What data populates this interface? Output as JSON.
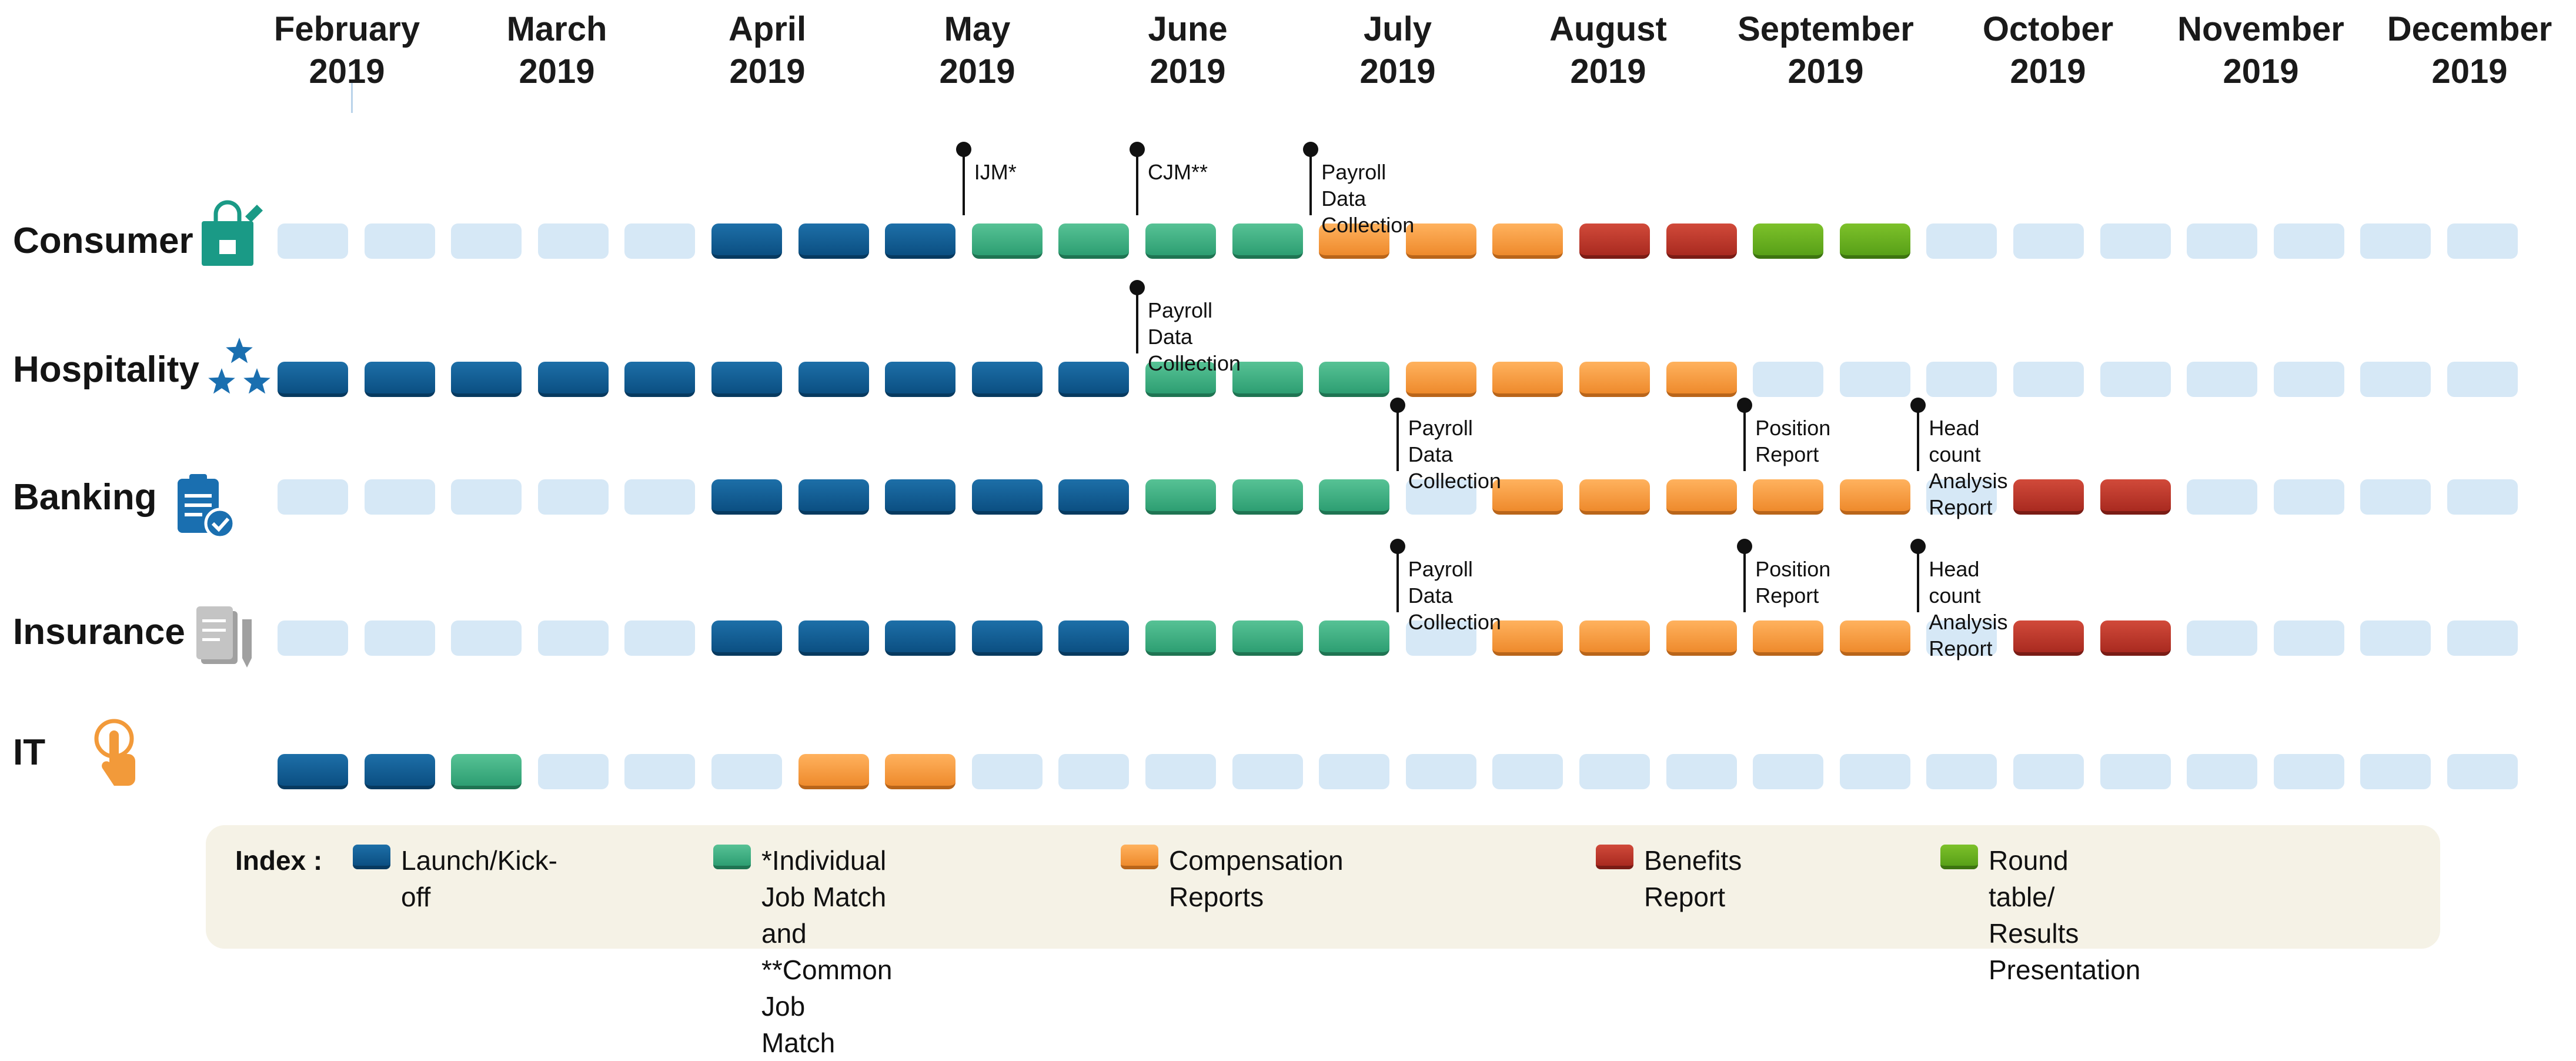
{
  "months": [
    "February\n2019",
    "March\n2019",
    "April\n2019",
    "May\n2019",
    "June\n2019",
    "July\n2019",
    "August\n2019",
    "September\n2019",
    "October\n2019",
    "November\n2019",
    "December\n2019"
  ],
  "rows": [
    {
      "label": "Consumer",
      "icon": "shopping-bag-icon",
      "blocks": [
        "empty",
        "empty",
        "empty",
        "empty",
        "empty",
        "launch",
        "launch",
        "launch",
        "match",
        "match",
        "match",
        "match",
        "comp",
        "comp",
        "comp",
        "benefit",
        "benefit",
        "round",
        "round",
        "empty",
        "empty",
        "empty",
        "empty",
        "empty",
        "empty",
        "empty"
      ]
    },
    {
      "label": "Hospitality",
      "icon": "stars-icon",
      "blocks": [
        "launch",
        "launch",
        "launch",
        "launch",
        "launch",
        "launch",
        "launch",
        "launch",
        "launch",
        "launch",
        "match",
        "match",
        "match",
        "comp",
        "comp",
        "comp",
        "comp",
        "empty",
        "empty",
        "empty",
        "empty",
        "empty",
        "empty",
        "empty",
        "empty",
        "empty"
      ]
    },
    {
      "label": "Banking",
      "icon": "clipboard-check-icon",
      "blocks": [
        "empty",
        "empty",
        "empty",
        "empty",
        "empty",
        "launch",
        "launch",
        "launch",
        "launch",
        "launch",
        "match",
        "match",
        "match",
        "empty",
        "comp",
        "comp",
        "comp",
        "comp",
        "comp",
        "empty",
        "benefit",
        "benefit",
        "empty",
        "empty",
        "empty",
        "empty"
      ]
    },
    {
      "label": "Insurance",
      "icon": "document-pen-icon",
      "blocks": [
        "empty",
        "empty",
        "empty",
        "empty",
        "empty",
        "launch",
        "launch",
        "launch",
        "launch",
        "launch",
        "match",
        "match",
        "match",
        "empty",
        "comp",
        "comp",
        "comp",
        "comp",
        "comp",
        "empty",
        "benefit",
        "benefit",
        "empty",
        "empty",
        "empty",
        "empty"
      ]
    },
    {
      "label": "IT",
      "icon": "pointing-hand-icon",
      "blocks": [
        "launch",
        "launch",
        "match",
        "empty",
        "empty",
        "empty",
        "comp",
        "comp",
        "empty",
        "empty",
        "empty",
        "empty",
        "empty",
        "empty",
        "empty",
        "empty",
        "empty",
        "empty",
        "empty",
        "empty",
        "empty",
        "empty",
        "empty",
        "empty",
        "empty",
        "empty"
      ]
    }
  ],
  "milestones": [
    {
      "row": 0,
      "slot": 8,
      "text": "IJM*"
    },
    {
      "row": 0,
      "slot": 10,
      "text": "CJM**"
    },
    {
      "row": 0,
      "slot": 12,
      "text": "Payroll\nData\nCollection"
    },
    {
      "row": 1,
      "slot": 10,
      "text": "Payroll\nData\nCollection"
    },
    {
      "row": 2,
      "slot": 13,
      "text": "Payroll\nData\nCollection"
    },
    {
      "row": 2,
      "slot": 17,
      "text": "Position\nReport"
    },
    {
      "row": 2,
      "slot": 19,
      "text": "Head count\nAnalysis\nReport"
    },
    {
      "row": 3,
      "slot": 13,
      "text": "Payroll\nData\nCollection"
    },
    {
      "row": 3,
      "slot": 17,
      "text": "Position\nReport"
    },
    {
      "row": 3,
      "slot": 19,
      "text": "Head count\nAnalysis\nReport"
    }
  ],
  "legend": {
    "title": "Index :",
    "items": [
      {
        "key": "launch",
        "label": "Launch/Kick-off"
      },
      {
        "key": "match",
        "label": "*Individual Job Match\nand **Common Job\nMatch"
      },
      {
        "key": "comp",
        "label": "Compensation Reports"
      },
      {
        "key": "benefit",
        "label": "Benefits Report"
      },
      {
        "key": "round",
        "label": "Round table/ Results\nPresentation"
      }
    ]
  },
  "colors": {
    "empty": "#d6e8f6",
    "launch": "#0e5a90",
    "match": "#3aae80",
    "comp": "#f79a3e",
    "benefit": "#b8352a",
    "round": "#67ad1c",
    "legend_bg": "#f5f2e6",
    "icon_teal": "#1a9a86",
    "icon_blue": "#1a6fb0",
    "icon_gray": "#a0a0a0",
    "icon_orange": "#f29a3a"
  }
}
